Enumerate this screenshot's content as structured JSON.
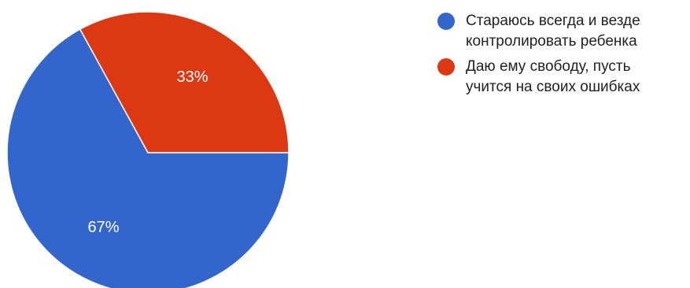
{
  "chart_data": {
    "type": "pie",
    "categories": [
      "Стараюсь всегда и везде\nконтролировать ребенка",
      "Даю ему свободу, пусть\nучится на своих ошибках"
    ],
    "values": [
      67,
      33
    ],
    "value_labels": [
      "67%",
      "33%"
    ],
    "colors": [
      "#3366cc",
      "#dc3912"
    ],
    "legend_position": "right",
    "title": ""
  }
}
